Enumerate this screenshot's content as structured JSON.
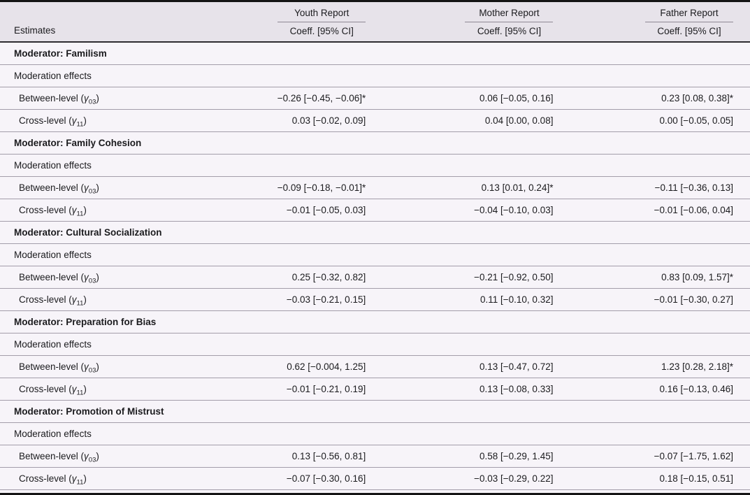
{
  "colors": {
    "header_bg": "#e7e3ea",
    "body_bg": "#f7f4f9",
    "rule_dark": "#141414",
    "rule_medium": "#2e2c30",
    "rule_light": "#a39daa",
    "spanner_underline": "#8d8893",
    "text": "#1b1b1e"
  },
  "table": {
    "estimates_header": "Estimates",
    "coeff_header": "Coeff. [95% CI]",
    "report_columns": [
      "Youth Report",
      "Mother Report",
      "Father Report"
    ],
    "sections": [
      {
        "title": "Moderator: Familism",
        "subheader": "Moderation effects",
        "rows": [
          {
            "label_pre": "Between-level (",
            "label_sym": "γ",
            "label_sub": "03",
            "label_post": ")",
            "youth": "−0.26 [−0.45, −0.06]*",
            "mother": "0.06 [−0.05, 0.16]",
            "father": "0.23 [0.08, 0.38]*"
          },
          {
            "label_pre": "Cross-level (",
            "label_sym": "γ",
            "label_sub": "11",
            "label_post": ")",
            "youth": "0.03 [−0.02, 0.09]",
            "mother": "0.04 [0.00, 0.08]",
            "father": "0.00 [−0.05, 0.05]"
          }
        ]
      },
      {
        "title": "Moderator: Family Cohesion",
        "subheader": "Moderation effects",
        "rows": [
          {
            "label_pre": "Between-level (",
            "label_sym": "γ",
            "label_sub": "03",
            "label_post": ")",
            "youth": "−0.09 [−0.18, −0.01]*",
            "mother": "0.13 [0.01, 0.24]*",
            "father": "−0.11 [−0.36, 0.13]"
          },
          {
            "label_pre": "Cross-level (",
            "label_sym": "γ",
            "label_sub": "11",
            "label_post": ")",
            "youth": "−0.01 [−0.05, 0.03]",
            "mother": "−0.04 [−0.10, 0.03]",
            "father": "−0.01 [−0.06, 0.04]"
          }
        ]
      },
      {
        "title": "Moderator: Cultural Socialization",
        "subheader": "Moderation effects",
        "rows": [
          {
            "label_pre": "Between-level (",
            "label_sym": "γ",
            "label_sub": "03",
            "label_post": ")",
            "youth": "0.25 [−0.32, 0.82]",
            "mother": "−0.21 [−0.92, 0.50]",
            "father": "0.83 [0.09, 1.57]*"
          },
          {
            "label_pre": "Cross-level (",
            "label_sym": "γ",
            "label_sub": "11",
            "label_post": ")",
            "youth": "−0.03 [−0.21, 0.15]",
            "mother": "0.11 [−0.10, 0.32]",
            "father": "−0.01 [−0.30, 0.27]"
          }
        ]
      },
      {
        "title": "Moderator: Preparation for Bias",
        "subheader": "Moderation effects",
        "rows": [
          {
            "label_pre": "Between-level (",
            "label_sym": "γ",
            "label_sub": "03",
            "label_post": ")",
            "youth": "0.62 [−0.004, 1.25]",
            "mother": "0.13 [−0.47, 0.72]",
            "father": "1.23 [0.28, 2.18]*"
          },
          {
            "label_pre": "Cross-level (",
            "label_sym": "γ",
            "label_sub": "11",
            "label_post": ")",
            "youth": "−0.01 [−0.21, 0.19]",
            "mother": "0.13 [−0.08, 0.33]",
            "father": "0.16 [−0.13, 0.46]"
          }
        ]
      },
      {
        "title": "Moderator: Promotion of Mistrust",
        "subheader": "Moderation effects",
        "rows": [
          {
            "label_pre": "Between-level (",
            "label_sym": "γ",
            "label_sub": "03",
            "label_post": ")",
            "youth": "0.13 [−0.56, 0.81]",
            "mother": "0.58 [−0.29, 1.45]",
            "father": "−0.07 [−1.75, 1.62]"
          },
          {
            "label_pre": "Cross-level (",
            "label_sym": "γ",
            "label_sub": "11",
            "label_post": ")",
            "youth": "−0.07 [−0.30, 0.16]",
            "mother": "−0.03 [−0.29, 0.22]",
            "father": "0.18 [−0.15, 0.51]"
          }
        ]
      }
    ]
  }
}
